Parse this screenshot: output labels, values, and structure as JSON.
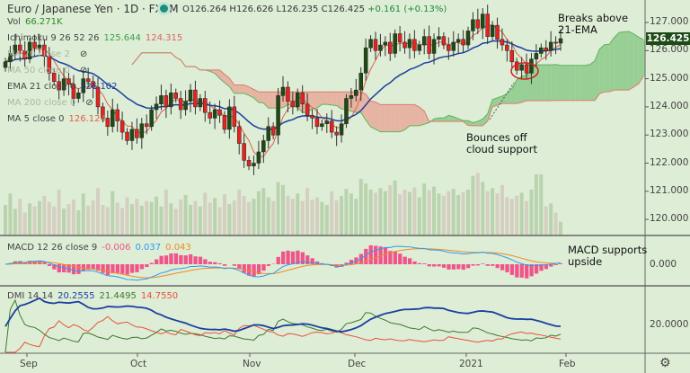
{
  "header": {
    "symbol_title": "Euro / Japanese Yen · 1D · FXCM",
    "open": "O126.264",
    "high": "H126.626",
    "low": "L126.235",
    "close": "C126.425",
    "change": "+0.161 (+0.13%)"
  },
  "legends": {
    "vol_label": "Vol",
    "vol_value": "66.271K",
    "ichimoku_label": "Ichimoku 9 26 52 26",
    "ichimoku_v1": "125.644",
    "ichimoku_v2": "124.315",
    "ma20_label": "MA 20 close 2",
    "ma50_label": "MA 50 close 0",
    "ema21_label": "EMA 21 close 0",
    "ema21_value": "126.102",
    "ma200_label": "MA 200 close 0",
    "ma5_label": "MA 5 close 0",
    "ma5_value": "126.124",
    "macd_label": "MACD 12 26 close 9",
    "macd_hist": "-0.006",
    "macd_line": "0.037",
    "macd_signal": "0.043",
    "dmi_label": "DMI 14 14",
    "dmi_adx": "20.2555",
    "dmi_plus": "21.4495",
    "dmi_minus": "14.7550"
  },
  "annotations": {
    "breaks": "Breaks above",
    "breaks2": "21-EMA",
    "bounces": "Bounces off",
    "bounces2": "cloud support",
    "macd_note": "MACD supports",
    "macd_note2": "upside"
  },
  "price_axis": {
    "ticks": [
      "127.000",
      "126.000",
      "125.000",
      "124.000",
      "123.000",
      "122.000",
      "121.000",
      "120.000"
    ],
    "last_price": "126.425"
  },
  "macd_axis": {
    "ticks": [
      "0.000"
    ]
  },
  "dmi_axis": {
    "ticks": [
      "20.0000"
    ]
  },
  "time_axis": {
    "labels": [
      "Sep",
      "Oct",
      "Nov",
      "Dec",
      "2021",
      "Feb"
    ]
  },
  "colors": {
    "bg": "#deedd6",
    "up": "#1f4a14",
    "down": "#e8231f",
    "ema": "#1b3fa0",
    "ma5": "#e0614a",
    "cloud_up": "#8cc98a",
    "cloud_down": "#e8a99a",
    "macd": "#2d9cf0",
    "signal": "#f08a24",
    "hist": "#f0558a",
    "adx": "#1b3fa0",
    "plus": "#3b7a2a",
    "minus": "#e8503c"
  },
  "chart_data": {
    "type": "candlestick",
    "closes": [
      125.6,
      125.9,
      126.2,
      126.0,
      125.7,
      126.3,
      126.1,
      126.2,
      125.8,
      125.2,
      124.9,
      124.6,
      125.0,
      124.8,
      124.3,
      124.5,
      125.0,
      124.9,
      124.7,
      124.0,
      123.6,
      123.3,
      123.9,
      123.5,
      123.1,
      122.8,
      123.2,
      122.9,
      123.4,
      123.3,
      123.9,
      124.1,
      124.4,
      124.0,
      124.5,
      124.3,
      123.9,
      124.2,
      124.6,
      124.0,
      124.3,
      123.8,
      123.6,
      123.9,
      123.7,
      123.2,
      124.0,
      123.3,
      122.7,
      122.1,
      121.9,
      122.0,
      122.4,
      122.8,
      123.3,
      123.0,
      124.4,
      124.7,
      124.2,
      124.0,
      124.5,
      124.1,
      123.7,
      123.6,
      123.3,
      123.4,
      123.5,
      123.1,
      123.0,
      123.4,
      124.3,
      124.4,
      124.6,
      125.2,
      126.1,
      126.4,
      126.0,
      126.2,
      126.3,
      125.9,
      126.6,
      126.3,
      126.1,
      126.4,
      126.0,
      126.2,
      126.5,
      125.9,
      126.4,
      126.5,
      126.2,
      126.0,
      126.3,
      126.4,
      126.2,
      126.7,
      127.1,
      126.8,
      127.3,
      126.5,
      126.9,
      126.4,
      126.2,
      126.0,
      125.6,
      125.3,
      125.5,
      125.2,
      125.7,
      125.9,
      126.1,
      126.0,
      126.3,
      126.264,
      126.425
    ],
    "volumes": [
      40,
      55,
      35,
      48,
      30,
      42,
      38,
      45,
      52,
      44,
      38,
      60,
      35,
      41,
      47,
      33,
      55,
      39,
      46,
      62,
      40,
      37,
      58,
      43,
      36,
      50,
      41,
      48,
      39,
      45,
      44,
      51,
      38,
      60,
      42,
      35,
      47,
      53,
      40,
      45,
      38,
      56,
      43,
      49,
      37,
      54,
      41,
      46,
      60,
      52,
      44,
      48,
      58,
      62,
      50,
      45,
      70,
      66,
      52,
      48,
      55,
      45,
      62,
      47,
      50,
      44,
      40,
      58,
      46,
      52,
      61,
      55,
      48,
      74,
      68,
      60,
      56,
      62,
      58,
      66,
      72,
      54,
      60,
      57,
      63,
      50,
      68,
      59,
      64,
      55,
      52,
      58,
      61,
      53,
      57,
      60,
      78,
      82,
      70,
      58,
      62,
      55,
      66,
      50,
      48,
      52,
      56,
      45,
      60,
      80,
      80,
      38,
      42,
      30,
      18
    ],
    "ylim": [
      119.6,
      127.7
    ],
    "xlabels": [
      "Sep",
      "Oct",
      "Nov",
      "Dec",
      "2021",
      "Feb"
    ]
  }
}
